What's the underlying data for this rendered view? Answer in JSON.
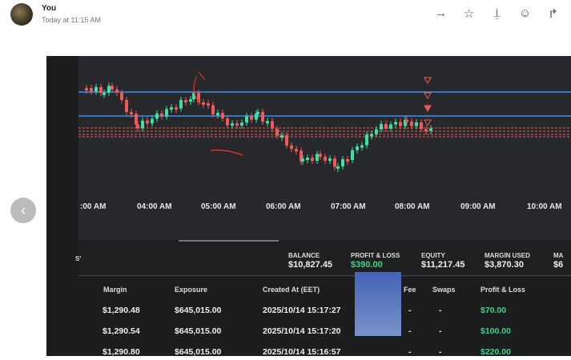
{
  "message": {
    "sender": "You",
    "timestamp": "Today at 11:15 AM"
  },
  "actions": [
    {
      "name": "forward-icon",
      "glyph": "→"
    },
    {
      "name": "star-icon",
      "glyph": "☆"
    },
    {
      "name": "pin-icon",
      "glyph": "⍊"
    },
    {
      "name": "emoji-icon",
      "glyph": "☺"
    },
    {
      "name": "share-icon",
      "glyph": "↱"
    }
  ],
  "photo": {
    "time_axis": [
      ":00 AM",
      "04:00 AM",
      "05:00 AM",
      "06:00 AM",
      "07:00 AM",
      "08:00 AM",
      "09:00 AM",
      "10:00 AM"
    ],
    "left_cut": "S'",
    "stats": [
      {
        "label": "BALANCE",
        "value": "$10,827.45"
      },
      {
        "label": "PROFIT & LOSS",
        "value": "$390.00",
        "positive": true
      },
      {
        "label": "EQUITY",
        "value": "$11,217.45"
      },
      {
        "label": "MARGIN USED",
        "value": "$3,870.30"
      },
      {
        "label": "MA",
        "value": "$6"
      }
    ],
    "table": {
      "headers": [
        "Margin",
        "Exposure",
        "Created At (EET)",
        "Fee",
        "Swaps",
        "Profit & Loss"
      ],
      "rows": [
        [
          "$1,290.48",
          "$645,015.00",
          "2025/10/14 15:17:27",
          "-",
          "-",
          "$70.00"
        ],
        [
          "$1,290.54",
          "$645,015.00",
          "2025/10/14 15:17:20",
          "-",
          "-",
          "$100.00"
        ],
        [
          "$1,290.80",
          "$645,015.00",
          "2025/10/14 15:16:57",
          "-",
          "-",
          "$220.00"
        ]
      ]
    },
    "colors": {
      "up": "#3fe0a0",
      "down": "#f05a5a",
      "level": "#3b8ff0",
      "profit": "#3fd28a"
    }
  }
}
